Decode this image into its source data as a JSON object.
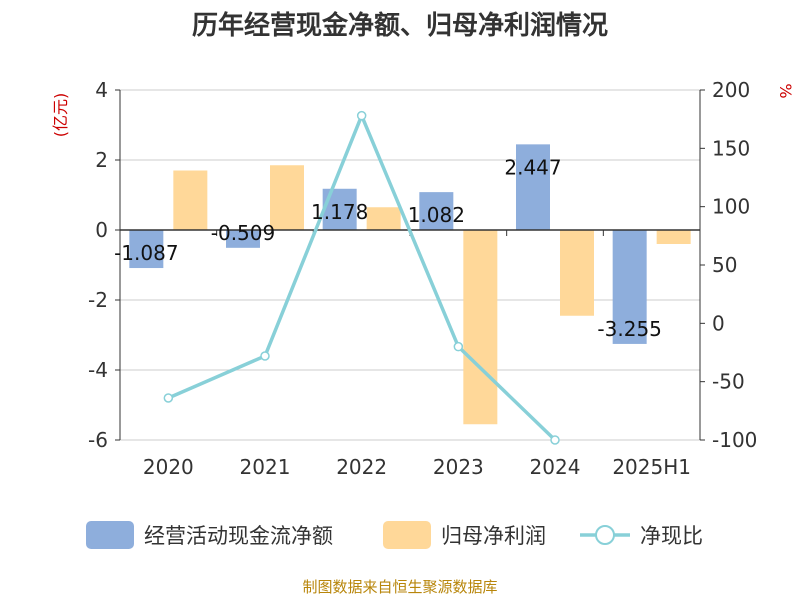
{
  "title": "历年经营现金净额、归母净利润情况",
  "source": "制图数据来自恒生聚源数据库",
  "colors": {
    "cash": "#8eaedc",
    "profit": "#ffd899",
    "ratio": "#88d0d8",
    "unit": "#cc0000"
  },
  "chart_data": {
    "type": "bar",
    "categories": [
      "2020",
      "2021",
      "2022",
      "2023",
      "2024",
      "2025H1"
    ],
    "series": [
      {
        "name": "经营活动现金流净额",
        "axis": "left",
        "type": "bar",
        "values": [
          -1.087,
          -0.509,
          1.178,
          1.082,
          2.447,
          -3.255
        ],
        "labels": [
          "-1.087",
          "-0.509",
          "1.178",
          "1.082",
          "2.447",
          "-3.255"
        ]
      },
      {
        "name": "归母净利润",
        "axis": "left",
        "type": "bar",
        "values": [
          1.7,
          1.85,
          0.65,
          -5.55,
          -2.45,
          -0.4
        ]
      },
      {
        "name": "净现比",
        "axis": "right",
        "type": "line",
        "values": [
          -64,
          -28,
          178,
          -20,
          -100,
          null
        ]
      }
    ],
    "y_left": {
      "unit": "(亿元)",
      "min": -6,
      "max": 4,
      "ticks": [
        "4",
        "2",
        "0",
        "-2",
        "-4",
        "-6"
      ]
    },
    "y_right": {
      "unit": "%",
      "min": -100,
      "max": 200,
      "ticks": [
        "200",
        "150",
        "100",
        "50",
        "0",
        "-50",
        "-100"
      ]
    },
    "grid": true,
    "legend": "bottom"
  }
}
